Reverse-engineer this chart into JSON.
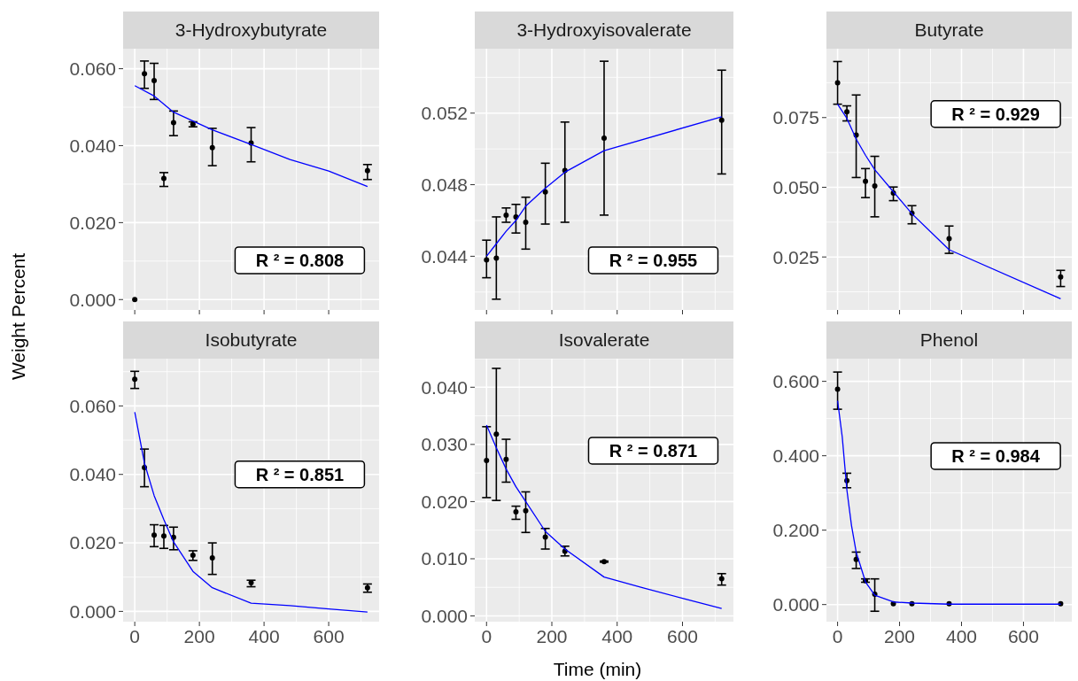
{
  "chart_data": [
    {
      "type": "scatter",
      "title": "3-Hydroxybutyrate",
      "tick_labels": "y",
      "grid": true,
      "xlim": [
        -36,
        756
      ],
      "xticks": [
        0,
        200,
        400,
        600
      ],
      "ylim": [
        -0.0027,
        0.0652
      ],
      "yticks": [
        {
          "value": 0,
          "label": "0.000"
        },
        {
          "value": 0.02,
          "label": "0.020"
        },
        {
          "value": 0.04,
          "label": "0.040"
        },
        {
          "value": 0.06,
          "label": "0.060"
        }
      ],
      "annotations": [
        "R ² = 0.808"
      ],
      "series": [
        {
          "type": "scatter",
          "color": "#000000",
          "marker": "circle",
          "x": [
            0,
            30,
            60,
            90,
            120,
            180,
            240,
            360,
            720
          ],
          "values": [
            0.0,
            0.0587,
            0.0569,
            0.0315,
            0.046,
            0.0456,
            0.0395,
            0.0407,
            0.0335
          ],
          "errors": [
            null,
            [
              0.0549,
              0.062
            ],
            [
              0.052,
              0.0614
            ],
            [
              0.0294,
              0.033
            ],
            [
              0.0426,
              0.049
            ],
            [
              0.0449,
              0.0462
            ],
            [
              0.0348,
              0.0445
            ],
            [
              0.0358,
              0.0447
            ],
            [
              0.0312,
              0.0351
            ]
          ]
        },
        {
          "type": "line",
          "color": "#0000ff",
          "x": [
            0,
            60,
            120,
            180,
            240,
            360,
            480,
            600,
            720
          ],
          "values": [
            0.0556,
            0.0529,
            0.0487,
            0.0464,
            0.0441,
            0.0403,
            0.0364,
            0.0334,
            0.0294
          ]
        }
      ]
    },
    {
      "type": "scatter",
      "title": "3-Hydroxyisovalerate",
      "tick_labels": "y",
      "grid": true,
      "xlim": [
        -36,
        756
      ],
      "xticks": [
        0,
        200,
        400,
        600
      ],
      "ylim": [
        0.041,
        0.0556
      ],
      "yticks": [
        {
          "value": 0.044,
          "label": "0.044"
        },
        {
          "value": 0.048,
          "label": "0.048"
        },
        {
          "value": 0.052,
          "label": "0.052"
        }
      ],
      "annotations": [
        "R ² = 0.955"
      ],
      "series": [
        {
          "type": "scatter",
          "color": "#000000",
          "marker": "circle",
          "x": [
            0,
            30,
            60,
            90,
            120,
            180,
            240,
            360,
            720
          ],
          "values": [
            0.0438,
            0.0439,
            0.0463,
            0.0462,
            0.0459,
            0.0476,
            0.0488,
            0.0506,
            0.0516
          ],
          "errors": [
            [
              0.0428,
              0.0449
            ],
            [
              0.0416,
              0.0462
            ],
            [
              0.0459,
              0.0467
            ],
            [
              0.0453,
              0.0469
            ],
            [
              0.0444,
              0.0473
            ],
            [
              0.0458,
              0.0492
            ],
            [
              0.0459,
              0.0515
            ],
            [
              0.0463,
              0.0549
            ],
            [
              0.0486,
              0.0544
            ]
          ]
        },
        {
          "type": "line",
          "color": "#0000ff",
          "x": [
            0,
            30,
            60,
            90,
            120,
            180,
            240,
            360,
            720
          ],
          "values": [
            0.044,
            0.0447,
            0.0454,
            0.046,
            0.0468,
            0.0478,
            0.0487,
            0.0499,
            0.0518
          ]
        }
      ]
    },
    {
      "type": "scatter",
      "title": "Butyrate",
      "tick_labels": "y",
      "grid": true,
      "xlim": [
        -36,
        756
      ],
      "xticks": [
        0,
        200,
        400,
        600
      ],
      "ylim": [
        0.006,
        0.0997
      ],
      "yticks": [
        {
          "value": 0.025,
          "label": "0.025"
        },
        {
          "value": 0.05,
          "label": "0.050"
        },
        {
          "value": 0.075,
          "label": "0.075"
        }
      ],
      "annotations": [
        "R ² = 0.929"
      ],
      "series": [
        {
          "type": "scatter",
          "color": "#000000",
          "marker": "circle",
          "x": [
            0,
            30,
            60,
            90,
            120,
            180,
            240,
            360,
            720
          ],
          "values": [
            0.0875,
            0.0771,
            0.0687,
            0.0521,
            0.0505,
            0.0479,
            0.0407,
            0.0316,
            0.0178
          ],
          "errors": [
            [
              0.0798,
              0.0951
            ],
            [
              0.0738,
              0.0792
            ],
            [
              0.0535,
              0.0831
            ],
            [
              0.0463,
              0.0567
            ],
            [
              0.0394,
              0.0611
            ],
            [
              0.0452,
              0.0501
            ],
            [
              0.0369,
              0.0434
            ],
            [
              0.0263,
              0.0361
            ],
            [
              0.0144,
              0.0202
            ]
          ]
        },
        {
          "type": "line",
          "color": "#0000ff",
          "x": [
            0,
            30,
            60,
            90,
            120,
            180,
            240,
            360,
            720
          ],
          "values": [
            0.0798,
            0.0747,
            0.0673,
            0.0615,
            0.0563,
            0.0484,
            0.0405,
            0.0276,
            0.01
          ]
        }
      ]
    },
    {
      "type": "scatter",
      "title": "Isobutyrate",
      "ylabel": "Weight Percent",
      "grid": true,
      "xlim": [
        -36,
        756
      ],
      "xticks": [
        0,
        200,
        400,
        600
      ],
      "ylim": [
        -0.003,
        0.0738
      ],
      "yticks": [
        {
          "value": 0,
          "label": "0.000"
        },
        {
          "value": 0.02,
          "label": "0.020"
        },
        {
          "value": 0.04,
          "label": "0.040"
        },
        {
          "value": 0.06,
          "label": "0.060"
        }
      ],
      "annotations": [
        "R ² = 0.851"
      ],
      "series": [
        {
          "type": "scatter",
          "color": "#000000",
          "marker": "circle",
          "x": [
            0,
            30,
            60,
            90,
            120,
            180,
            240,
            360,
            720
          ],
          "values": [
            0.0678,
            0.042,
            0.0223,
            0.022,
            0.0216,
            0.0164,
            0.0156,
            0.0084,
            0.0069
          ],
          "errors": [
            [
              0.0651,
              0.0701
            ],
            [
              0.0364,
              0.0474
            ],
            [
              0.0189,
              0.0253
            ],
            [
              0.0184,
              0.0251
            ],
            [
              0.018,
              0.0246
            ],
            [
              0.0149,
              0.0177
            ],
            [
              0.0108,
              0.02
            ],
            [
              0.0072,
              0.0091
            ],
            [
              0.0056,
              0.008
            ]
          ]
        },
        {
          "type": "line",
          "color": "#0000ff",
          "x": [
            0,
            30,
            60,
            90,
            120,
            180,
            240,
            360,
            480,
            600,
            720
          ],
          "values": [
            0.0582,
            0.0433,
            0.0338,
            0.0268,
            0.0203,
            0.0117,
            0.0069,
            0.0024,
            0.0017,
            0.0007,
            -0.0002
          ]
        }
      ]
    },
    {
      "type": "scatter",
      "title": "Isovalerate",
      "xlabel": "Time (min)",
      "grid": true,
      "xlim": [
        -36,
        756
      ],
      "xticks": [
        0,
        200,
        400,
        600
      ],
      "ylim": [
        -0.001,
        0.045
      ],
      "yticks": [
        {
          "value": 0,
          "label": "0.000"
        },
        {
          "value": 0.01,
          "label": "0.010"
        },
        {
          "value": 0.02,
          "label": "0.020"
        },
        {
          "value": 0.03,
          "label": "0.030"
        },
        {
          "value": 0.04,
          "label": "0.040"
        }
      ],
      "annotations": [
        "R ² = 0.871"
      ],
      "series": [
        {
          "type": "scatter",
          "color": "#000000",
          "marker": "circle",
          "x": [
            0,
            30,
            60,
            90,
            120,
            180,
            240,
            360,
            720
          ],
          "values": [
            0.0272,
            0.0318,
            0.0274,
            0.0182,
            0.0184,
            0.0138,
            0.0113,
            0.0095,
            0.0065
          ],
          "errors": [
            [
              0.0207,
              0.0331
            ],
            [
              0.0202,
              0.0433
            ],
            [
              0.0234,
              0.0309
            ],
            [
              0.0169,
              0.0192
            ],
            [
              0.0146,
              0.0217
            ],
            [
              0.0117,
              0.0153
            ],
            [
              0.0105,
              0.0122
            ],
            [
              0.0094,
              0.0096
            ],
            [
              0.0054,
              0.0074
            ]
          ]
        },
        {
          "type": "line",
          "color": "#0000ff",
          "x": [
            0,
            30,
            60,
            90,
            120,
            180,
            240,
            360,
            480,
            600,
            720
          ],
          "values": [
            0.0334,
            0.0294,
            0.0257,
            0.0226,
            0.02,
            0.0148,
            0.0117,
            0.0068,
            0.0049,
            0.0031,
            0.0013
          ]
        }
      ]
    },
    {
      "type": "scatter",
      "title": "Phenol",
      "grid": true,
      "xlim": [
        -36,
        756
      ],
      "xticks": [
        0,
        200,
        400,
        600
      ],
      "ylim": [
        -0.046,
        0.661
      ],
      "yticks": [
        {
          "value": 0,
          "label": "0.000"
        },
        {
          "value": 0.2,
          "label": "0.200"
        },
        {
          "value": 0.4,
          "label": "0.400"
        },
        {
          "value": 0.6,
          "label": "0.600"
        }
      ],
      "annotations": [
        "R ² = 0.984"
      ],
      "series": [
        {
          "type": "scatter",
          "color": "#000000",
          "marker": "circle",
          "x": [
            0,
            30,
            60,
            90,
            120,
            180,
            240,
            360,
            720
          ],
          "values": [
            0.579,
            0.333,
            0.121,
            0.064,
            0.028,
            0.002,
            0.002,
            0.002,
            0.002
          ],
          "errors": [
            [
              0.525,
              0.625
            ],
            [
              0.314,
              0.353
            ],
            [
              0.097,
              0.141
            ],
            [
              0.06,
              0.069
            ],
            [
              -0.018,
              0.069
            ],
            null,
            null,
            null,
            null
          ]
        },
        {
          "type": "line",
          "color": "#0000ff",
          "x": [
            0,
            15,
            30,
            45,
            60,
            90,
            120,
            180,
            240,
            360,
            720
          ],
          "values": [
            0.548,
            0.451,
            0.308,
            0.212,
            0.141,
            0.061,
            0.025,
            0.007,
            0.004,
            0.001,
            0.001
          ]
        }
      ]
    }
  ]
}
